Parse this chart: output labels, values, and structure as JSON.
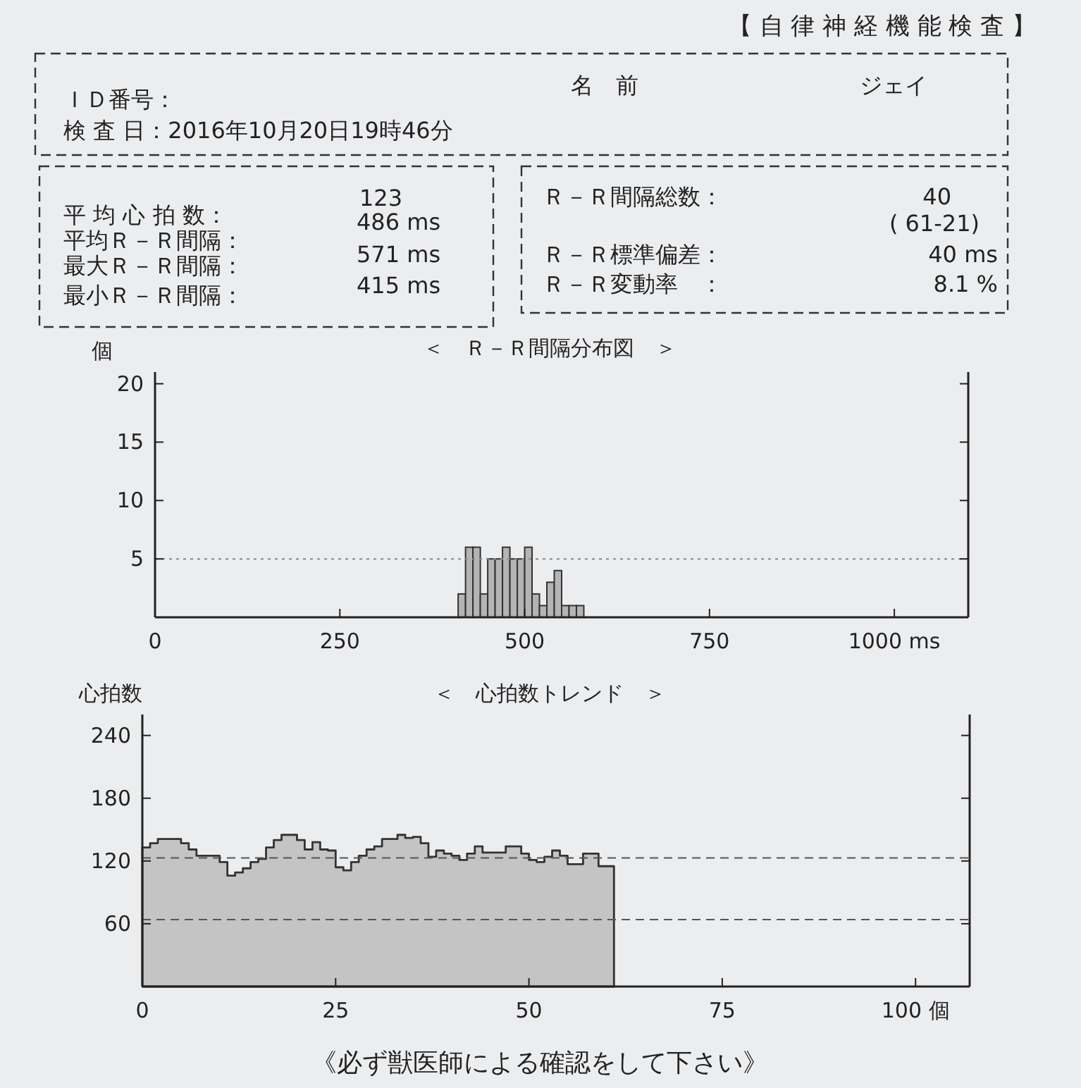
{
  "chart_data": [
    {
      "type": "other",
      "title": "【 自 律 神 経 機 能 検 査 】",
      "annotations": [
        "ＩＤ番号：",
        "検 査 日：2016年10月20日19時46分",
        "名　前",
        "ジェイ",
        "平 均 心 拍 数：",
        "123",
        "平均Ｒ－Ｒ間隔：",
        "486 ms",
        "最大Ｒ－Ｒ間隔：",
        "571 ms",
        "最小Ｒ－Ｒ間隔：",
        "415 ms",
        "Ｒ－Ｒ間隔総数：",
        "40",
        "( 61-21)",
        "Ｒ－Ｒ標準偏差：",
        "40 ms",
        "Ｒ－Ｒ変動率　：",
        "8.1 %"
      ]
    },
    {
      "type": "histogram",
      "title": "＜　Ｒ－Ｒ間隔分布図　＞",
      "ylabel": "個",
      "bins": [
        410,
        420,
        430,
        440,
        450,
        460,
        470,
        480,
        490,
        500,
        510,
        520,
        530,
        540,
        550,
        560,
        570,
        580
      ],
      "values": [
        2,
        6,
        6,
        2,
        5,
        5,
        6,
        5,
        5,
        6,
        2,
        1,
        3,
        4,
        1,
        1,
        1
      ],
      "color": "#b4b4b4",
      "xlim": [
        0,
        1100
      ],
      "ylim": [
        0,
        21
      ],
      "xticks": [
        0,
        250,
        500,
        750,
        {
          "value": 1000,
          "label": "1000 ms"
        }
      ],
      "yticks": [
        5,
        10,
        15,
        20
      ],
      "ref_lines": [
        {
          "axis": "y",
          "value": 5,
          "line_style": "dotted",
          "color": "#888888"
        }
      ]
    },
    {
      "type": "area",
      "title": "＜　心拍数トレンド　＞",
      "ylabel": "心拍数",
      "x": [
        0,
        1,
        2,
        3,
        4,
        5,
        6,
        7,
        8,
        9,
        10,
        11,
        12,
        13,
        14,
        15,
        16,
        17,
        18,
        19,
        20,
        21,
        22,
        23,
        24,
        25,
        26,
        27,
        28,
        29,
        30,
        31,
        32,
        33,
        34,
        35,
        36,
        37,
        38,
        39,
        40,
        41,
        42,
        43,
        44,
        45,
        46,
        47,
        48,
        49,
        50,
        51,
        52,
        53,
        54,
        55,
        56,
        57,
        58,
        59,
        60,
        61
      ],
      "values": [
        133,
        137,
        141,
        141,
        141,
        137,
        131,
        125,
        125,
        125,
        119,
        106,
        109,
        113,
        119,
        122,
        133,
        140,
        145,
        145,
        140,
        131,
        138,
        131,
        130,
        114,
        111,
        119,
        125,
        131,
        134,
        141,
        141,
        145,
        142,
        143,
        137,
        124,
        130,
        127,
        125,
        121,
        127,
        134,
        128,
        128,
        128,
        134,
        134,
        127,
        121,
        119,
        124,
        130,
        125,
        117,
        117,
        127,
        127,
        115,
        115,
        115
      ],
      "color": "#c4c4c4",
      "xlim": [
        0,
        107
      ],
      "ylim": [
        0,
        260
      ],
      "xticks": [
        0,
        25,
        50,
        75,
        {
          "value": 100,
          "label": "100 個"
        }
      ],
      "yticks": [
        60,
        120,
        180,
        240
      ],
      "ref_lines": [
        {
          "axis": "y",
          "value": 123,
          "line_style": "dashed",
          "color": "#555555"
        },
        {
          "axis": "y",
          "value": 64,
          "line_style": "dashed",
          "color": "#555555"
        }
      ],
      "annotations": [
        "《必ず獣医師による確認をして下さい》"
      ]
    }
  ]
}
